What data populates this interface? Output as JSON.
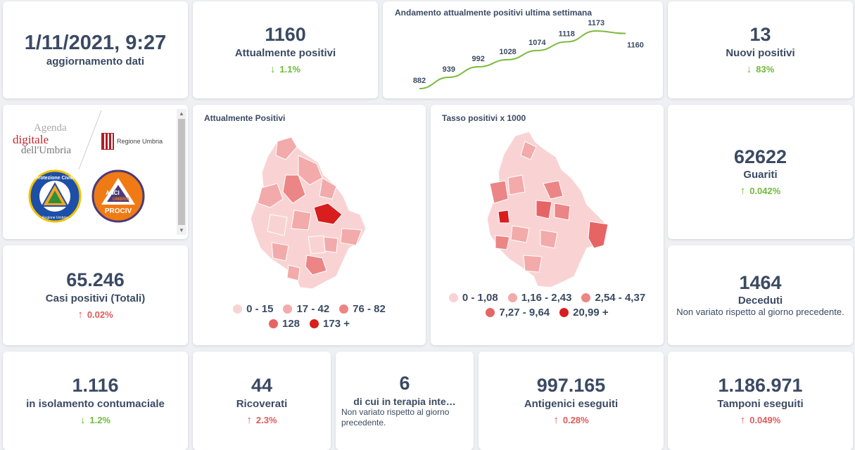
{
  "update": {
    "datetime": "1/11/2021, 9:27",
    "label": "aggiornamento dati"
  },
  "attualmente_positivi": {
    "value": "1160",
    "label": "Attualmente positivi",
    "delta": "1.1%",
    "direction": "down"
  },
  "trend": {
    "title": "Andamento attualmente positivi ultima settimana",
    "values": [
      882,
      939,
      992,
      1028,
      1074,
      1118,
      1173,
      1160
    ],
    "value_labels": [
      "882",
      "939",
      "992",
      "1028",
      "1074",
      "1118",
      "1173",
      "1160"
    ],
    "color": "#7cbb3e"
  },
  "nuovi_positivi": {
    "value": "13",
    "label": "Nuovi positivi",
    "delta": "83%",
    "direction": "down"
  },
  "logos": {
    "agenda_1": "Agenda",
    "agenda_2": "digitale",
    "agenda_3": "dell'Umbria",
    "regione": "Regione Umbria",
    "protezione": "Protezione Civile",
    "protezione_sub": "Regione Umbria",
    "anci_1": "ANCI",
    "anci_2": "UMBRIA",
    "anci_3": "PROCIV"
  },
  "map_positivi": {
    "title": "Attualmente Positivi",
    "legend": [
      {
        "label": "0 - 15",
        "color": "#f9d3d3"
      },
      {
        "label": "17 - 42",
        "color": "#f3aaaa"
      },
      {
        "label": "76 - 82",
        "color": "#ec8585"
      },
      {
        "label": "128",
        "color": "#e76464"
      },
      {
        "label": "173 +",
        "color": "#d81e1e"
      }
    ]
  },
  "map_tasso": {
    "title": "Tasso positivi x 1000",
    "legend": [
      {
        "label": "0 - 1,08",
        "color": "#f9d3d3"
      },
      {
        "label": "1,16 - 2,43",
        "color": "#f3aaaa"
      },
      {
        "label": "2,54 - 4,37",
        "color": "#ec8585"
      },
      {
        "label": "7,27 - 9,64",
        "color": "#e76464"
      },
      {
        "label": "20,99 +",
        "color": "#d81e1e"
      }
    ]
  },
  "guariti": {
    "value": "62622",
    "label": "Guariti",
    "delta": "0.042%",
    "direction": "up-green"
  },
  "casi_totali": {
    "value": "65.246",
    "label": "Casi positivi (Totali)",
    "delta": "0.02%",
    "direction": "up"
  },
  "deceduti": {
    "value": "1464",
    "label": "Deceduti",
    "note": "Non variato rispetto al giorno precedente."
  },
  "isolamento": {
    "value": "1.116",
    "label": "in isolamento contumaciale",
    "delta": "1.2%",
    "direction": "down"
  },
  "ricoverati": {
    "value": "44",
    "label": "Ricoverati",
    "delta": "2.3%",
    "direction": "up"
  },
  "terapia": {
    "value": "6",
    "label": "di cui in terapia inte…",
    "note": "Non variato rispetto al giorno precedente."
  },
  "antigenici": {
    "value": "997.165",
    "label": "Antigenici eseguiti",
    "delta": "0.28%",
    "direction": "up"
  },
  "tamponi": {
    "value": "1.186.971",
    "label": "Tamponi eseguiti",
    "delta": "0.049%",
    "direction": "up"
  }
}
